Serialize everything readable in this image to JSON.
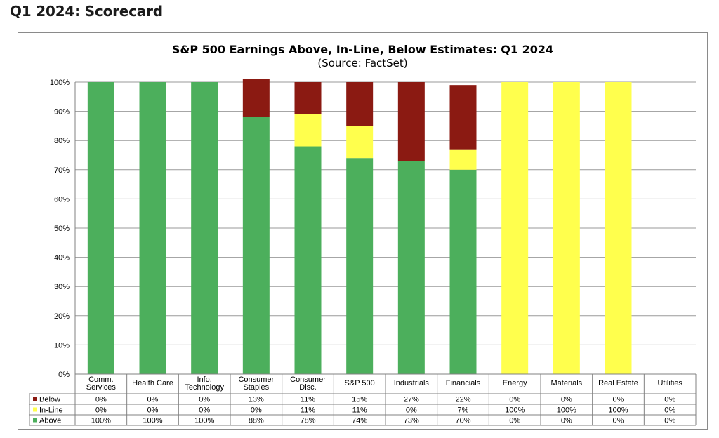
{
  "page": {
    "title": "Q1 2024: Scorecard"
  },
  "chart_data": {
    "type": "bar",
    "stacked": true,
    "title": "S&P 500 Earnings Above, In-Line, Below Estimates: Q1 2024",
    "subtitle": "(Source: FactSet)",
    "ylim": [
      0,
      100
    ],
    "yticks": [
      "0%",
      "10%",
      "20%",
      "30%",
      "40%",
      "50%",
      "60%",
      "70%",
      "80%",
      "90%",
      "100%"
    ],
    "grid": true,
    "categories": [
      "Comm.\nServices",
      "Health Care",
      "Info.\nTechnology",
      "Consumer\nStaples",
      "Consumer\nDisc.",
      "S&P 500",
      "Industrials",
      "Financials",
      "Energy",
      "Materials",
      "Real Estate",
      "Utilities"
    ],
    "series": [
      {
        "name": "Below",
        "color": "#8b1a12",
        "values": [
          0,
          0,
          0,
          13,
          11,
          15,
          27,
          22,
          0,
          0,
          0,
          0
        ],
        "labels": [
          "0%",
          "0%",
          "0%",
          "13%",
          "11%",
          "15%",
          "27%",
          "22%",
          "0%",
          "0%",
          "0%",
          "0%"
        ]
      },
      {
        "name": "In-Line",
        "color": "#ffff4d",
        "values": [
          0,
          0,
          0,
          0,
          11,
          11,
          0,
          7,
          100,
          100,
          100,
          0
        ],
        "labels": [
          "0%",
          "0%",
          "0%",
          "0%",
          "11%",
          "11%",
          "0%",
          "7%",
          "100%",
          "100%",
          "100%",
          "0%"
        ]
      },
      {
        "name": "Above",
        "color": "#4caf5c",
        "values": [
          100,
          100,
          100,
          88,
          78,
          74,
          73,
          70,
          0,
          0,
          0,
          0
        ],
        "labels": [
          "100%",
          "100%",
          "100%",
          "88%",
          "78%",
          "74%",
          "73%",
          "70%",
          "0%",
          "0%",
          "0%",
          "0%"
        ]
      }
    ]
  }
}
